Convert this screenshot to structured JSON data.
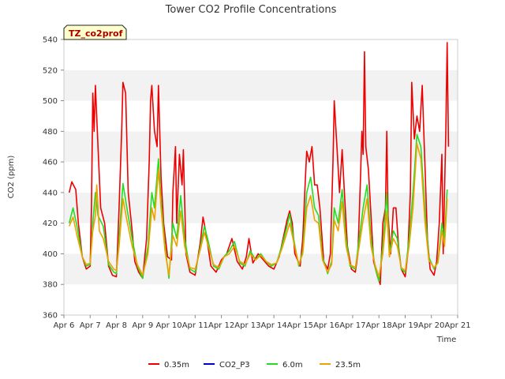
{
  "chart_data": {
    "type": "line",
    "title": "Tower CO2 Profile Concentrations",
    "xlabel": "Time",
    "ylabel": "CO2 (ppm)",
    "ylim": [
      360,
      540
    ],
    "yticks": [
      360,
      380,
      400,
      420,
      440,
      460,
      480,
      500,
      520,
      540
    ],
    "xlim": [
      0,
      15
    ],
    "xticks": [
      "Apr 6",
      "Apr 7",
      "Apr 8",
      "Apr 9",
      "Apr 10",
      "Apr 11",
      "Apr 12",
      "Apr 13",
      "Apr 14",
      "Apr 15",
      "Apr 16",
      "Apr 17",
      "Apr 18",
      "Apr 19",
      "Apr 20",
      "Apr 21"
    ],
    "tag": "TZ_co2prof",
    "grid": "alternating horizontal bands",
    "legend_position": "bottom",
    "series": [
      {
        "name": "0.35m",
        "color": "#ee0000",
        "points": [
          [
            0.2,
            440
          ],
          [
            0.3,
            447
          ],
          [
            0.45,
            442
          ],
          [
            0.55,
            420
          ],
          [
            0.7,
            398
          ],
          [
            0.85,
            390
          ],
          [
            1.0,
            392
          ],
          [
            1.05,
            430
          ],
          [
            1.1,
            505
          ],
          [
            1.15,
            480
          ],
          [
            1.2,
            510
          ],
          [
            1.3,
            470
          ],
          [
            1.4,
            430
          ],
          [
            1.55,
            420
          ],
          [
            1.7,
            392
          ],
          [
            1.85,
            386
          ],
          [
            2.0,
            385
          ],
          [
            2.1,
            430
          ],
          [
            2.2,
            480
          ],
          [
            2.25,
            512
          ],
          [
            2.35,
            505
          ],
          [
            2.45,
            440
          ],
          [
            2.6,
            415
          ],
          [
            2.7,
            395
          ],
          [
            2.85,
            388
          ],
          [
            3.0,
            384
          ],
          [
            3.15,
            410
          ],
          [
            3.25,
            460
          ],
          [
            3.3,
            500
          ],
          [
            3.35,
            510
          ],
          [
            3.45,
            480
          ],
          [
            3.55,
            470
          ],
          [
            3.6,
            510
          ],
          [
            3.7,
            450
          ],
          [
            3.8,
            420
          ],
          [
            3.95,
            398
          ],
          [
            4.1,
            396
          ],
          [
            4.15,
            440
          ],
          [
            4.25,
            470
          ],
          [
            4.3,
            420
          ],
          [
            4.4,
            465
          ],
          [
            4.5,
            445
          ],
          [
            4.55,
            468
          ],
          [
            4.65,
            400
          ],
          [
            4.8,
            388
          ],
          [
            5.0,
            386
          ],
          [
            5.2,
            408
          ],
          [
            5.3,
            424
          ],
          [
            5.4,
            415
          ],
          [
            5.6,
            392
          ],
          [
            5.8,
            388
          ],
          [
            6.0,
            396
          ],
          [
            6.2,
            400
          ],
          [
            6.4,
            410
          ],
          [
            6.6,
            395
          ],
          [
            6.8,
            390
          ],
          [
            6.95,
            398
          ],
          [
            7.05,
            410
          ],
          [
            7.2,
            394
          ],
          [
            7.4,
            400
          ],
          [
            7.6,
            396
          ],
          [
            7.8,
            392
          ],
          [
            8.0,
            390
          ],
          [
            8.2,
            398
          ],
          [
            8.35,
            410
          ],
          [
            8.5,
            422
          ],
          [
            8.6,
            428
          ],
          [
            8.7,
            420
          ],
          [
            8.8,
            400
          ],
          [
            9.0,
            392
          ],
          [
            9.1,
            410
          ],
          [
            9.2,
            450
          ],
          [
            9.25,
            467
          ],
          [
            9.35,
            460
          ],
          [
            9.45,
            470
          ],
          [
            9.55,
            445
          ],
          [
            9.65,
            445
          ],
          [
            9.75,
            430
          ],
          [
            9.9,
            395
          ],
          [
            10.05,
            390
          ],
          [
            10.15,
            400
          ],
          [
            10.25,
            460
          ],
          [
            10.3,
            500
          ],
          [
            10.4,
            470
          ],
          [
            10.5,
            440
          ],
          [
            10.6,
            468
          ],
          [
            10.7,
            435
          ],
          [
            10.8,
            405
          ],
          [
            10.95,
            390
          ],
          [
            11.1,
            388
          ],
          [
            11.2,
            400
          ],
          [
            11.3,
            450
          ],
          [
            11.35,
            480
          ],
          [
            11.4,
            465
          ],
          [
            11.45,
            532
          ],
          [
            11.5,
            470
          ],
          [
            11.6,
            455
          ],
          [
            11.7,
            425
          ],
          [
            11.8,
            395
          ],
          [
            11.95,
            385
          ],
          [
            12.05,
            380
          ],
          [
            12.15,
            420
          ],
          [
            12.25,
            430
          ],
          [
            12.3,
            480
          ],
          [
            12.35,
            425
          ],
          [
            12.45,
            400
          ],
          [
            12.55,
            430
          ],
          [
            12.65,
            430
          ],
          [
            12.75,
            405
          ],
          [
            12.85,
            390
          ],
          [
            13.0,
            385
          ],
          [
            13.1,
            400
          ],
          [
            13.2,
            440
          ],
          [
            13.25,
            512
          ],
          [
            13.35,
            475
          ],
          [
            13.45,
            490
          ],
          [
            13.55,
            480
          ],
          [
            13.65,
            510
          ],
          [
            13.75,
            460
          ],
          [
            13.85,
            410
          ],
          [
            13.95,
            390
          ],
          [
            14.1,
            386
          ],
          [
            14.2,
            395
          ],
          [
            14.3,
            420
          ],
          [
            14.4,
            465
          ],
          [
            14.45,
            400
          ],
          [
            14.55,
            480
          ],
          [
            14.6,
            538
          ],
          [
            14.65,
            470
          ]
        ]
      },
      {
        "name": "CO2_P3",
        "color": "#0000cc",
        "points": []
      },
      {
        "name": "6.0m",
        "color": "#22dd22",
        "points": [
          [
            0.2,
            420
          ],
          [
            0.35,
            430
          ],
          [
            0.5,
            418
          ],
          [
            0.7,
            398
          ],
          [
            0.85,
            392
          ],
          [
            1.0,
            393
          ],
          [
            1.1,
            420
          ],
          [
            1.2,
            440
          ],
          [
            1.3,
            425
          ],
          [
            1.5,
            418
          ],
          [
            1.7,
            393
          ],
          [
            1.9,
            388
          ],
          [
            2.0,
            387
          ],
          [
            2.1,
            410
          ],
          [
            2.25,
            446
          ],
          [
            2.4,
            430
          ],
          [
            2.6,
            410
          ],
          [
            2.8,
            392
          ],
          [
            3.0,
            384
          ],
          [
            3.2,
            405
          ],
          [
            3.35,
            440
          ],
          [
            3.45,
            430
          ],
          [
            3.6,
            462
          ],
          [
            3.7,
            435
          ],
          [
            3.85,
            405
          ],
          [
            4.0,
            384
          ],
          [
            4.15,
            420
          ],
          [
            4.3,
            410
          ],
          [
            4.45,
            438
          ],
          [
            4.6,
            410
          ],
          [
            4.8,
            390
          ],
          [
            5.0,
            388
          ],
          [
            5.2,
            405
          ],
          [
            5.35,
            418
          ],
          [
            5.5,
            408
          ],
          [
            5.7,
            392
          ],
          [
            5.9,
            390
          ],
          [
            6.1,
            398
          ],
          [
            6.3,
            402
          ],
          [
            6.5,
            408
          ],
          [
            6.7,
            394
          ],
          [
            6.9,
            392
          ],
          [
            7.1,
            402
          ],
          [
            7.3,
            396
          ],
          [
            7.5,
            400
          ],
          [
            7.7,
            395
          ],
          [
            7.9,
            392
          ],
          [
            8.1,
            394
          ],
          [
            8.3,
            405
          ],
          [
            8.5,
            418
          ],
          [
            8.6,
            426
          ],
          [
            8.75,
            410
          ],
          [
            8.95,
            392
          ],
          [
            9.1,
            402
          ],
          [
            9.25,
            440
          ],
          [
            9.4,
            450
          ],
          [
            9.55,
            430
          ],
          [
            9.7,
            425
          ],
          [
            9.85,
            398
          ],
          [
            10.05,
            387
          ],
          [
            10.2,
            395
          ],
          [
            10.3,
            430
          ],
          [
            10.45,
            420
          ],
          [
            10.6,
            442
          ],
          [
            10.75,
            410
          ],
          [
            10.9,
            392
          ],
          [
            11.1,
            390
          ],
          [
            11.25,
            410
          ],
          [
            11.4,
            430
          ],
          [
            11.55,
            445
          ],
          [
            11.7,
            410
          ],
          [
            11.85,
            392
          ],
          [
            12.0,
            382
          ],
          [
            12.15,
            405
          ],
          [
            12.3,
            440
          ],
          [
            12.4,
            400
          ],
          [
            12.55,
            415
          ],
          [
            12.7,
            410
          ],
          [
            12.85,
            390
          ],
          [
            13.0,
            388
          ],
          [
            13.15,
            410
          ],
          [
            13.3,
            440
          ],
          [
            13.45,
            478
          ],
          [
            13.6,
            470
          ],
          [
            13.75,
            430
          ],
          [
            13.9,
            398
          ],
          [
            14.1,
            390
          ],
          [
            14.25,
            395
          ],
          [
            14.4,
            420
          ],
          [
            14.5,
            410
          ],
          [
            14.6,
            442
          ]
        ]
      },
      {
        "name": "23.5m",
        "color": "#f0a000",
        "points": [
          [
            0.2,
            418
          ],
          [
            0.35,
            424
          ],
          [
            0.5,
            412
          ],
          [
            0.7,
            398
          ],
          [
            0.85,
            393
          ],
          [
            1.0,
            394
          ],
          [
            1.1,
            415
          ],
          [
            1.2,
            425
          ],
          [
            1.25,
            445
          ],
          [
            1.35,
            415
          ],
          [
            1.5,
            410
          ],
          [
            1.7,
            395
          ],
          [
            1.9,
            390
          ],
          [
            2.0,
            389
          ],
          [
            2.1,
            405
          ],
          [
            2.25,
            436
          ],
          [
            2.4,
            422
          ],
          [
            2.6,
            405
          ],
          [
            2.8,
            393
          ],
          [
            3.0,
            386
          ],
          [
            3.2,
            400
          ],
          [
            3.35,
            430
          ],
          [
            3.45,
            422
          ],
          [
            3.6,
            455
          ],
          [
            3.7,
            430
          ],
          [
            3.85,
            402
          ],
          [
            4.0,
            386
          ],
          [
            4.15,
            412
          ],
          [
            4.3,
            405
          ],
          [
            4.45,
            428
          ],
          [
            4.6,
            405
          ],
          [
            4.8,
            391
          ],
          [
            5.0,
            390
          ],
          [
            5.2,
            403
          ],
          [
            5.35,
            414
          ],
          [
            5.5,
            405
          ],
          [
            5.7,
            393
          ],
          [
            5.9,
            391
          ],
          [
            6.1,
            398
          ],
          [
            6.3,
            400
          ],
          [
            6.5,
            405
          ],
          [
            6.7,
            395
          ],
          [
            6.9,
            393
          ],
          [
            7.1,
            400
          ],
          [
            7.3,
            396
          ],
          [
            7.5,
            399
          ],
          [
            7.7,
            395
          ],
          [
            7.9,
            393
          ],
          [
            8.1,
            394
          ],
          [
            8.3,
            403
          ],
          [
            8.5,
            414
          ],
          [
            8.6,
            420
          ],
          [
            8.75,
            408
          ],
          [
            8.95,
            393
          ],
          [
            9.1,
            400
          ],
          [
            9.25,
            430
          ],
          [
            9.4,
            438
          ],
          [
            9.55,
            422
          ],
          [
            9.7,
            420
          ],
          [
            9.85,
            396
          ],
          [
            10.05,
            388
          ],
          [
            10.2,
            393
          ],
          [
            10.3,
            422
          ],
          [
            10.45,
            415
          ],
          [
            10.6,
            434
          ],
          [
            10.75,
            405
          ],
          [
            10.9,
            393
          ],
          [
            11.1,
            391
          ],
          [
            11.25,
            405
          ],
          [
            11.4,
            422
          ],
          [
            11.55,
            436
          ],
          [
            11.7,
            405
          ],
          [
            11.85,
            393
          ],
          [
            12.0,
            385
          ],
          [
            12.15,
            400
          ],
          [
            12.3,
            428
          ],
          [
            12.4,
            398
          ],
          [
            12.55,
            410
          ],
          [
            12.7,
            405
          ],
          [
            12.85,
            391
          ],
          [
            13.0,
            389
          ],
          [
            13.15,
            405
          ],
          [
            13.3,
            430
          ],
          [
            13.45,
            472
          ],
          [
            13.6,
            462
          ],
          [
            13.75,
            422
          ],
          [
            13.9,
            396
          ],
          [
            14.1,
            391
          ],
          [
            14.25,
            394
          ],
          [
            14.4,
            415
          ],
          [
            14.5,
            405
          ],
          [
            14.6,
            436
          ]
        ]
      }
    ]
  }
}
